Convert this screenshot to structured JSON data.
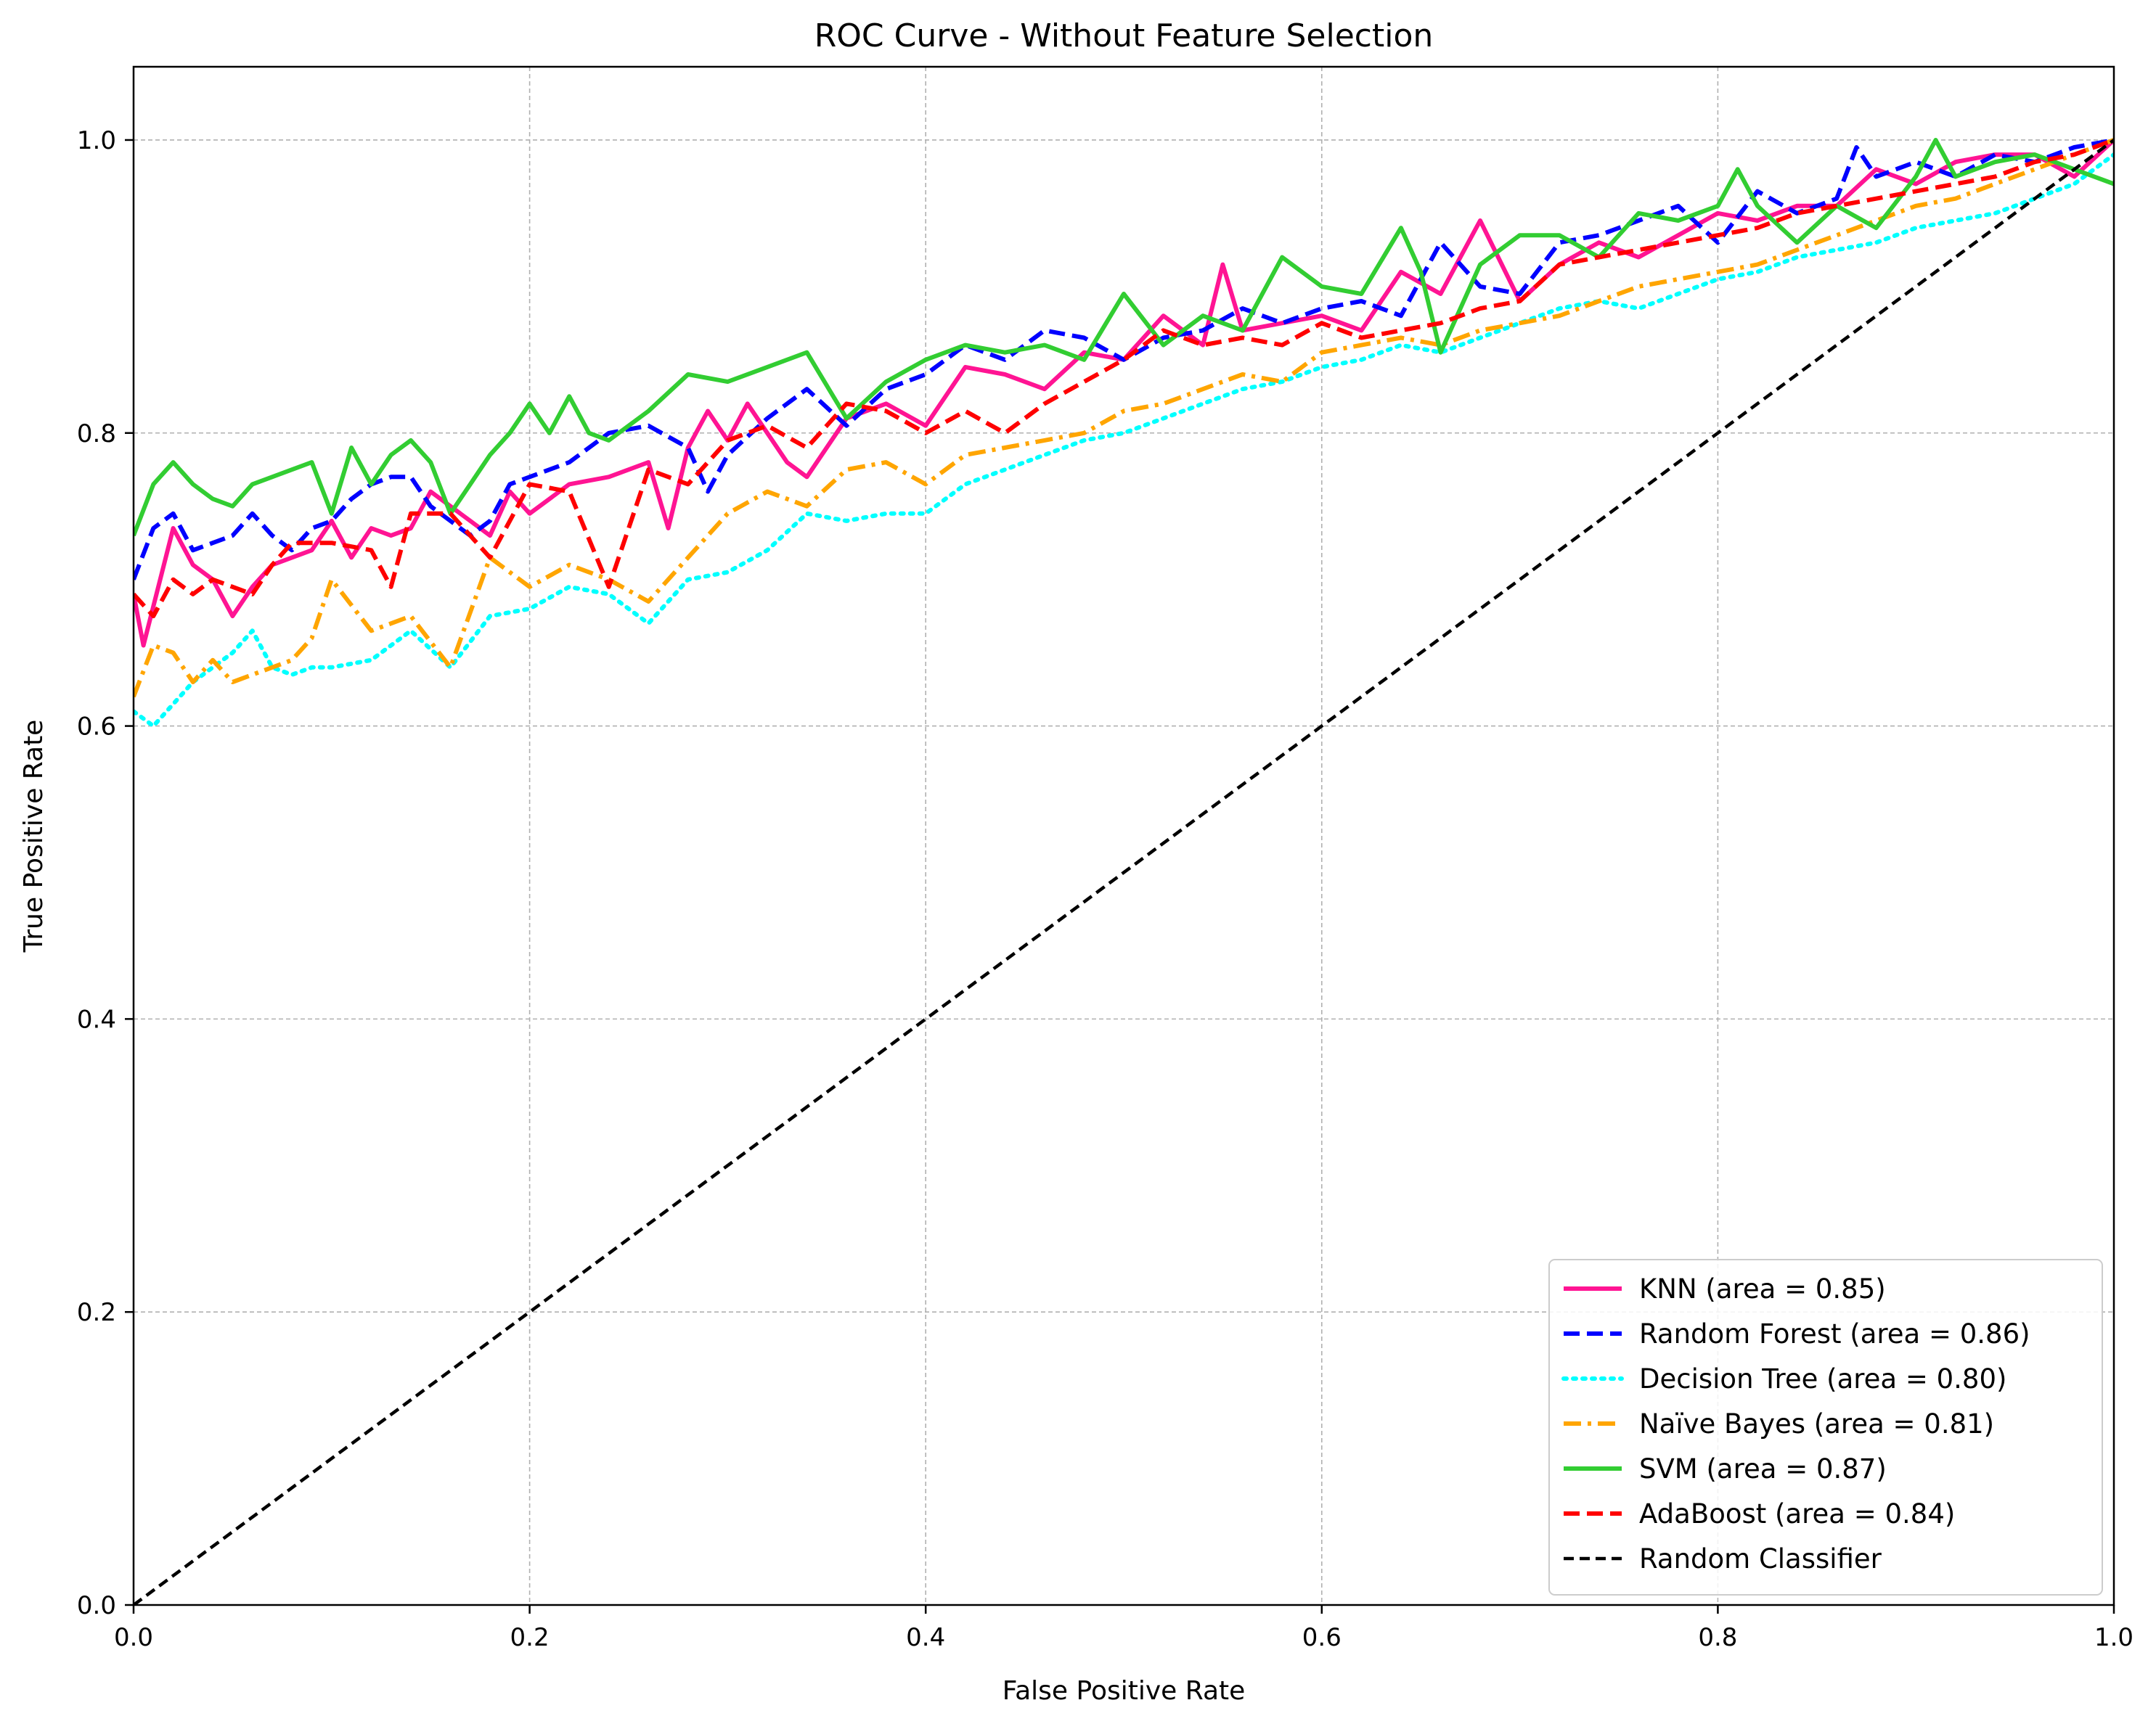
{
  "chart_data": {
    "type": "line",
    "title": "ROC Curve - Without Feature Selection",
    "xlabel": "False Positive Rate",
    "ylabel": "True Positive Rate",
    "xlim": [
      0.0,
      1.0
    ],
    "ylim": [
      0.0,
      1.05
    ],
    "xticks": [
      0.0,
      0.2,
      0.4,
      0.6,
      0.8,
      1.0
    ],
    "yticks": [
      0.0,
      0.2,
      0.4,
      0.6,
      0.8,
      1.0
    ],
    "xtick_labels": [
      "0.0",
      "0.2",
      "0.4",
      "0.6",
      "0.8",
      "1.0"
    ],
    "ytick_labels": [
      "0.0",
      "0.2",
      "0.4",
      "0.6",
      "0.8",
      "1.0"
    ],
    "grid": true,
    "legend_position": "bottom-right",
    "series": [
      {
        "name": "KNN (area = 0.85)",
        "color": "#ff1493",
        "style": "solid",
        "x": [
          0,
          0.005,
          0.02,
          0.03,
          0.04,
          0.05,
          0.06,
          0.07,
          0.08,
          0.09,
          0.1,
          0.11,
          0.12,
          0.13,
          0.14,
          0.15,
          0.16,
          0.17,
          0.18,
          0.19,
          0.2,
          0.22,
          0.24,
          0.26,
          0.27,
          0.28,
          0.29,
          0.3,
          0.31,
          0.32,
          0.33,
          0.34,
          0.36,
          0.38,
          0.4,
          0.42,
          0.44,
          0.46,
          0.48,
          0.5,
          0.52,
          0.54,
          0.55,
          0.56,
          0.58,
          0.6,
          0.62,
          0.64,
          0.66,
          0.68,
          0.7,
          0.72,
          0.74,
          0.76,
          0.78,
          0.8,
          0.82,
          0.84,
          0.86,
          0.88,
          0.9,
          0.92,
          0.94,
          0.96,
          0.98,
          1.0
        ],
        "y": [
          0.69,
          0.655,
          0.735,
          0.71,
          0.7,
          0.675,
          0.695,
          0.71,
          0.715,
          0.72,
          0.74,
          0.715,
          0.735,
          0.73,
          0.735,
          0.76,
          0.75,
          0.74,
          0.73,
          0.76,
          0.745,
          0.765,
          0.77,
          0.78,
          0.735,
          0.79,
          0.815,
          0.795,
          0.82,
          0.8,
          0.78,
          0.77,
          0.81,
          0.82,
          0.805,
          0.845,
          0.84,
          0.83,
          0.855,
          0.85,
          0.88,
          0.86,
          0.915,
          0.87,
          0.875,
          0.88,
          0.87,
          0.91,
          0.895,
          0.945,
          0.89,
          0.915,
          0.93,
          0.92,
          0.935,
          0.95,
          0.945,
          0.955,
          0.955,
          0.98,
          0.97,
          0.985,
          0.99,
          0.99,
          0.975,
          1.0
        ]
      },
      {
        "name": "Random Forest (area = 0.86)",
        "color": "#0000ff",
        "style": "dashed",
        "x": [
          0,
          0.01,
          0.02,
          0.03,
          0.04,
          0.05,
          0.06,
          0.07,
          0.08,
          0.09,
          0.1,
          0.11,
          0.12,
          0.13,
          0.14,
          0.15,
          0.16,
          0.17,
          0.18,
          0.19,
          0.2,
          0.22,
          0.24,
          0.26,
          0.28,
          0.29,
          0.3,
          0.32,
          0.34,
          0.36,
          0.38,
          0.4,
          0.42,
          0.44,
          0.46,
          0.48,
          0.5,
          0.52,
          0.54,
          0.56,
          0.58,
          0.6,
          0.62,
          0.64,
          0.66,
          0.68,
          0.7,
          0.72,
          0.74,
          0.76,
          0.78,
          0.8,
          0.82,
          0.84,
          0.86,
          0.87,
          0.88,
          0.9,
          0.92,
          0.94,
          0.96,
          0.98,
          1.0
        ],
        "y": [
          0.7,
          0.735,
          0.745,
          0.72,
          0.725,
          0.73,
          0.745,
          0.73,
          0.72,
          0.735,
          0.74,
          0.755,
          0.765,
          0.77,
          0.77,
          0.75,
          0.74,
          0.73,
          0.74,
          0.765,
          0.77,
          0.78,
          0.8,
          0.805,
          0.79,
          0.76,
          0.785,
          0.81,
          0.83,
          0.805,
          0.83,
          0.84,
          0.86,
          0.85,
          0.87,
          0.865,
          0.85,
          0.865,
          0.87,
          0.885,
          0.875,
          0.885,
          0.89,
          0.88,
          0.93,
          0.9,
          0.895,
          0.93,
          0.935,
          0.945,
          0.955,
          0.93,
          0.965,
          0.95,
          0.96,
          0.995,
          0.975,
          0.985,
          0.975,
          0.99,
          0.985,
          0.995,
          1.0
        ]
      },
      {
        "name": "Decision Tree (area = 0.80)",
        "color": "#00ffff",
        "style": "dotted",
        "x": [
          0,
          0.01,
          0.02,
          0.03,
          0.04,
          0.05,
          0.06,
          0.07,
          0.08,
          0.09,
          0.1,
          0.12,
          0.14,
          0.16,
          0.18,
          0.2,
          0.22,
          0.24,
          0.26,
          0.28,
          0.3,
          0.32,
          0.34,
          0.36,
          0.38,
          0.4,
          0.42,
          0.44,
          0.46,
          0.48,
          0.5,
          0.52,
          0.54,
          0.56,
          0.58,
          0.6,
          0.62,
          0.64,
          0.66,
          0.68,
          0.7,
          0.72,
          0.74,
          0.76,
          0.78,
          0.8,
          0.82,
          0.84,
          0.86,
          0.88,
          0.9,
          0.92,
          0.94,
          0.96,
          0.98,
          1.0
        ],
        "y": [
          0.61,
          0.6,
          0.615,
          0.63,
          0.64,
          0.65,
          0.665,
          0.64,
          0.635,
          0.64,
          0.64,
          0.645,
          0.665,
          0.64,
          0.675,
          0.68,
          0.695,
          0.69,
          0.67,
          0.7,
          0.705,
          0.72,
          0.745,
          0.74,
          0.745,
          0.745,
          0.765,
          0.775,
          0.785,
          0.795,
          0.8,
          0.81,
          0.82,
          0.83,
          0.835,
          0.845,
          0.85,
          0.86,
          0.855,
          0.865,
          0.875,
          0.885,
          0.89,
          0.885,
          0.895,
          0.905,
          0.91,
          0.92,
          0.925,
          0.93,
          0.94,
          0.945,
          0.95,
          0.96,
          0.97,
          0.99
        ]
      },
      {
        "name": "Naïve Bayes (area = 0.81)",
        "color": "#ffa500",
        "style": "dashdot",
        "x": [
          0,
          0.01,
          0.02,
          0.03,
          0.04,
          0.05,
          0.06,
          0.07,
          0.08,
          0.09,
          0.1,
          0.12,
          0.14,
          0.16,
          0.18,
          0.2,
          0.22,
          0.24,
          0.26,
          0.28,
          0.3,
          0.32,
          0.34,
          0.36,
          0.38,
          0.4,
          0.42,
          0.44,
          0.46,
          0.48,
          0.5,
          0.52,
          0.54,
          0.56,
          0.58,
          0.6,
          0.62,
          0.64,
          0.66,
          0.68,
          0.7,
          0.72,
          0.74,
          0.76,
          0.78,
          0.8,
          0.82,
          0.84,
          0.86,
          0.88,
          0.9,
          0.92,
          0.94,
          0.96,
          0.98,
          1.0
        ],
        "y": [
          0.62,
          0.655,
          0.65,
          0.63,
          0.645,
          0.63,
          0.635,
          0.64,
          0.645,
          0.66,
          0.7,
          0.665,
          0.675,
          0.64,
          0.715,
          0.695,
          0.71,
          0.7,
          0.685,
          0.715,
          0.745,
          0.76,
          0.75,
          0.775,
          0.78,
          0.765,
          0.785,
          0.79,
          0.795,
          0.8,
          0.815,
          0.82,
          0.83,
          0.84,
          0.835,
          0.855,
          0.86,
          0.865,
          0.86,
          0.87,
          0.875,
          0.88,
          0.89,
          0.9,
          0.905,
          0.91,
          0.915,
          0.925,
          0.935,
          0.945,
          0.955,
          0.96,
          0.97,
          0.98,
          0.99,
          1.0
        ]
      },
      {
        "name": "SVM (area = 0.87)",
        "color": "#32cd32",
        "style": "solid",
        "x": [
          0,
          0.01,
          0.02,
          0.03,
          0.04,
          0.05,
          0.06,
          0.07,
          0.08,
          0.09,
          0.1,
          0.11,
          0.12,
          0.13,
          0.14,
          0.15,
          0.16,
          0.17,
          0.18,
          0.19,
          0.2,
          0.21,
          0.22,
          0.23,
          0.24,
          0.26,
          0.28,
          0.3,
          0.32,
          0.34,
          0.36,
          0.38,
          0.4,
          0.42,
          0.44,
          0.46,
          0.48,
          0.5,
          0.52,
          0.54,
          0.56,
          0.58,
          0.6,
          0.62,
          0.64,
          0.65,
          0.66,
          0.68,
          0.7,
          0.72,
          0.74,
          0.76,
          0.78,
          0.8,
          0.81,
          0.82,
          0.84,
          0.86,
          0.88,
          0.9,
          0.91,
          0.92,
          0.94,
          0.96,
          0.98,
          1.0
        ],
        "y": [
          0.73,
          0.765,
          0.78,
          0.765,
          0.755,
          0.75,
          0.765,
          0.77,
          0.775,
          0.78,
          0.745,
          0.79,
          0.765,
          0.785,
          0.795,
          0.78,
          0.745,
          0.765,
          0.785,
          0.8,
          0.82,
          0.8,
          0.825,
          0.8,
          0.795,
          0.815,
          0.84,
          0.835,
          0.845,
          0.855,
          0.81,
          0.835,
          0.85,
          0.86,
          0.855,
          0.86,
          0.85,
          0.895,
          0.86,
          0.88,
          0.87,
          0.92,
          0.9,
          0.895,
          0.94,
          0.91,
          0.855,
          0.915,
          0.935,
          0.935,
          0.92,
          0.95,
          0.945,
          0.955,
          0.98,
          0.955,
          0.93,
          0.955,
          0.94,
          0.975,
          1.0,
          0.975,
          0.985,
          0.99,
          0.98,
          0.97
        ]
      },
      {
        "name": "AdaBoost (area = 0.84)",
        "color": "#ff0000",
        "style": "dashed",
        "x": [
          0,
          0.01,
          0.02,
          0.03,
          0.04,
          0.05,
          0.06,
          0.07,
          0.08,
          0.09,
          0.1,
          0.12,
          0.13,
          0.14,
          0.16,
          0.18,
          0.2,
          0.22,
          0.24,
          0.26,
          0.28,
          0.3,
          0.32,
          0.34,
          0.36,
          0.38,
          0.4,
          0.42,
          0.44,
          0.46,
          0.48,
          0.5,
          0.52,
          0.54,
          0.56,
          0.58,
          0.6,
          0.62,
          0.64,
          0.66,
          0.68,
          0.7,
          0.72,
          0.74,
          0.76,
          0.78,
          0.8,
          0.82,
          0.84,
          0.86,
          0.88,
          0.9,
          0.92,
          0.94,
          0.96,
          0.98,
          1.0
        ],
        "y": [
          0.69,
          0.675,
          0.7,
          0.69,
          0.7,
          0.695,
          0.69,
          0.71,
          0.725,
          0.725,
          0.725,
          0.72,
          0.695,
          0.745,
          0.745,
          0.715,
          0.765,
          0.76,
          0.695,
          0.775,
          0.765,
          0.795,
          0.805,
          0.79,
          0.82,
          0.815,
          0.8,
          0.815,
          0.8,
          0.82,
          0.835,
          0.85,
          0.87,
          0.86,
          0.865,
          0.86,
          0.875,
          0.865,
          0.87,
          0.875,
          0.885,
          0.89,
          0.915,
          0.92,
          0.925,
          0.93,
          0.935,
          0.94,
          0.95,
          0.955,
          0.96,
          0.965,
          0.97,
          0.975,
          0.985,
          0.99,
          1.0
        ]
      },
      {
        "name": "Random Classifier",
        "color": "#000000",
        "style": "dashed",
        "x": [
          0.0,
          1.0
        ],
        "y": [
          0.0,
          1.0
        ]
      }
    ]
  }
}
